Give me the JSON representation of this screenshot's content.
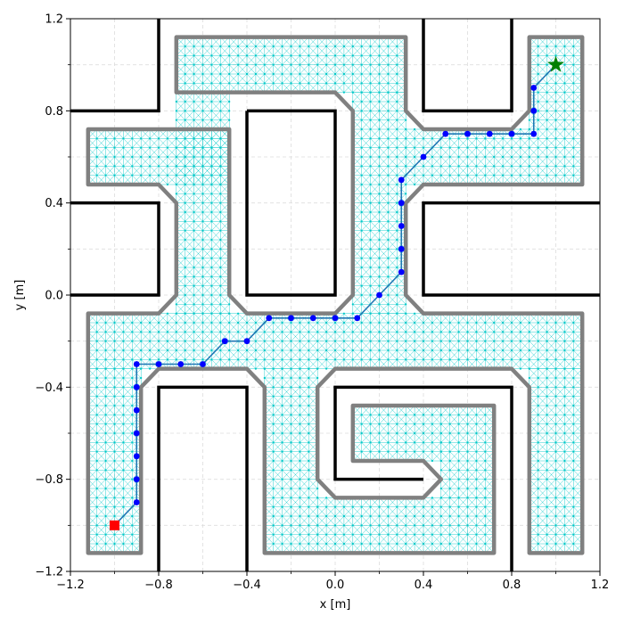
{
  "chart_data": {
    "type": "scatter",
    "xlabel": "x [m]",
    "ylabel": "y [m]",
    "xlim": [
      -1.2,
      1.2
    ],
    "ylim": [
      -1.2,
      1.2
    ],
    "xticks": [
      -1.2,
      -0.8,
      -0.4,
      0.0,
      0.4,
      0.8,
      1.2
    ],
    "xtick_labels": [
      "−1.2",
      "−0.8",
      "−0.4",
      "0.0",
      "0.4",
      "0.8",
      "1.2"
    ],
    "yticks": [
      -1.2,
      -0.8,
      -0.4,
      0.0,
      0.4,
      0.8,
      1.2
    ],
    "ytick_labels": [
      "−1.2",
      "−0.8",
      "−0.4",
      "0.0",
      "0.4",
      "0.8",
      "1.2"
    ],
    "grid": true,
    "colors": {
      "walls": "#000000",
      "inflated_boundary": "#808080",
      "free_mesh": "#00c8c8",
      "path": "#1f77b4",
      "waypoints": "#0000ff",
      "start": "#ff0000",
      "goal": "#008000"
    },
    "walls": [
      [
        [
          -0.8,
          1.2
        ],
        [
          -0.8,
          0.8
        ],
        [
          -1.2,
          0.8
        ]
      ],
      [
        [
          -1.2,
          0.4
        ],
        [
          -0.8,
          0.4
        ],
        [
          -0.8,
          0.0
        ],
        [
          -1.2,
          0.0
        ]
      ],
      [
        [
          -0.4,
          0.8
        ],
        [
          0.0,
          0.8
        ],
        [
          0.0,
          0.0
        ],
        [
          -0.4,
          0.0
        ],
        [
          -0.4,
          0.8
        ]
      ],
      [
        [
          0.4,
          1.2
        ],
        [
          0.4,
          0.8
        ],
        [
          0.8,
          0.8
        ],
        [
          0.8,
          1.2
        ]
      ],
      [
        [
          1.2,
          0.4
        ],
        [
          0.4,
          0.4
        ],
        [
          0.4,
          0.0
        ],
        [
          1.2,
          0.0
        ]
      ],
      [
        [
          -0.8,
          -1.2
        ],
        [
          -0.8,
          -0.4
        ],
        [
          -0.4,
          -0.4
        ],
        [
          -0.4,
          -1.2
        ]
      ],
      [
        [
          0.8,
          -1.2
        ],
        [
          0.8,
          -0.4
        ],
        [
          0.0,
          -0.4
        ],
        [
          0.0,
          -0.8
        ],
        [
          0.4,
          -0.8
        ]
      ]
    ],
    "free_regions": [
      {
        "x": [
          -0.72,
          0.32
        ],
        "y": [
          0.88,
          1.12
        ]
      },
      {
        "x": [
          -1.12,
          -0.48
        ],
        "y": [
          0.48,
          0.72
        ]
      },
      {
        "x": [
          -0.72,
          -0.48
        ],
        "y": [
          -0.08,
          0.88
        ]
      },
      {
        "x": [
          0.08,
          0.32
        ],
        "y": [
          -0.08,
          0.88
        ]
      },
      {
        "x": [
          0.32,
          0.88
        ],
        "y": [
          0.48,
          0.72
        ]
      },
      {
        "x": [
          0.88,
          1.12
        ],
        "y": [
          0.48,
          1.12
        ]
      },
      {
        "x": [
          -1.12,
          1.12
        ],
        "y": [
          -0.32,
          -0.08
        ]
      },
      {
        "x": [
          -1.12,
          -0.88
        ],
        "y": [
          -1.12,
          -0.32
        ]
      },
      {
        "x": [
          -0.32,
          -0.08
        ],
        "y": [
          -1.12,
          -0.32
        ]
      },
      {
        "x": [
          -0.08,
          0.72
        ],
        "y": [
          -1.12,
          -0.88
        ]
      },
      {
        "x": [
          0.48,
          0.72
        ],
        "y": [
          -0.88,
          -0.48
        ]
      },
      {
        "x": [
          0.08,
          0.48
        ],
        "y": [
          -0.72,
          -0.48
        ]
      },
      {
        "x": [
          0.88,
          1.12
        ],
        "y": [
          -1.12,
          -0.32
        ]
      }
    ],
    "inflated_boundary": [
      [
        [
          -0.72,
          1.12
        ],
        [
          0.32,
          1.12
        ],
        [
          0.32,
          0.8
        ],
        [
          0.4,
          0.72
        ],
        [
          0.8,
          0.72
        ],
        [
          0.88,
          0.8
        ],
        [
          0.88,
          1.12
        ],
        [
          1.12,
          1.12
        ],
        [
          1.12,
          0.48
        ],
        [
          0.4,
          0.48
        ],
        [
          0.32,
          0.4
        ],
        [
          0.32,
          0.0
        ],
        [
          0.4,
          -0.08
        ],
        [
          1.12,
          -0.08
        ],
        [
          1.12,
          -1.12
        ],
        [
          0.88,
          -1.12
        ],
        [
          0.88,
          -0.4
        ],
        [
          0.8,
          -0.32
        ],
        [
          0.0,
          -0.32
        ],
        [
          -0.08,
          -0.4
        ],
        [
          -0.08,
          -0.8
        ],
        [
          0.0,
          -0.88
        ],
        [
          0.4,
          -0.88
        ],
        [
          0.48,
          -0.8
        ],
        [
          0.4,
          -0.72
        ],
        [
          0.08,
          -0.72
        ],
        [
          0.08,
          -0.48
        ],
        [
          0.72,
          -0.48
        ],
        [
          0.72,
          -1.12
        ],
        [
          -0.32,
          -1.12
        ],
        [
          -0.32,
          -0.4
        ],
        [
          -0.4,
          -0.32
        ],
        [
          -0.8,
          -0.32
        ],
        [
          -0.88,
          -0.4
        ],
        [
          -0.88,
          -1.12
        ],
        [
          -1.12,
          -1.12
        ],
        [
          -1.12,
          -0.08
        ],
        [
          -0.8,
          -0.08
        ],
        [
          -0.72,
          0.0
        ],
        [
          -0.72,
          0.4
        ],
        [
          -0.8,
          0.48
        ],
        [
          -1.12,
          0.48
        ],
        [
          -1.12,
          0.72
        ],
        [
          -0.48,
          0.72
        ],
        [
          -0.48,
          0.0
        ],
        [
          -0.4,
          -0.08
        ],
        [
          0.0,
          -0.08
        ],
        [
          0.08,
          0.0
        ],
        [
          0.08,
          0.8
        ],
        [
          0.0,
          0.88
        ],
        [
          -0.72,
          0.88
        ],
        [
          -0.72,
          1.12
        ]
      ]
    ],
    "path": {
      "x": [
        -1.0,
        -0.9,
        -0.9,
        -0.9,
        -0.9,
        -0.9,
        -0.9,
        -0.9,
        -0.8,
        -0.7,
        -0.6,
        -0.5,
        -0.4,
        -0.3,
        -0.2,
        -0.1,
        0.0,
        0.1,
        0.2,
        0.3,
        0.3,
        0.3,
        0.3,
        0.3,
        0.4,
        0.5,
        0.6,
        0.7,
        0.8,
        0.9,
        0.9,
        0.9,
        1.0
      ],
      "y": [
        -1.0,
        -0.9,
        -0.8,
        -0.7,
        -0.6,
        -0.5,
        -0.4,
        -0.3,
        -0.3,
        -0.3,
        -0.3,
        -0.2,
        -0.2,
        -0.1,
        -0.1,
        -0.1,
        -0.1,
        -0.1,
        0.0,
        0.1,
        0.2,
        0.3,
        0.4,
        0.5,
        0.6,
        0.7,
        0.7,
        0.7,
        0.7,
        0.7,
        0.8,
        0.9,
        1.0
      ]
    },
    "start": {
      "x": -1.0,
      "y": -1.0
    },
    "goal": {
      "x": 1.0,
      "y": 1.0
    }
  }
}
